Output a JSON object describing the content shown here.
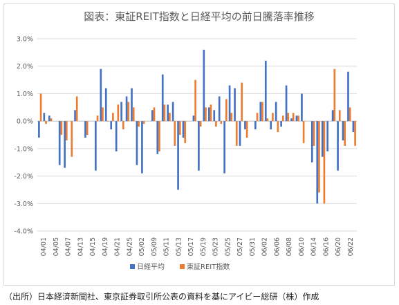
{
  "caption": "（出所）日本経済新聞社、東京証券取引所公表の資料を基にアイビー総研（株）作成",
  "chart_data": {
    "type": "bar",
    "title": "図表：東証REIT指数と日経平均の前日騰落率推移",
    "xlabel": "",
    "ylabel": "",
    "ylim": [
      -4.0,
      3.0
    ],
    "yticks": [
      "-4.0%",
      "-3.0%",
      "-2.0%",
      "-1.0%",
      "0.0%",
      "1.0%",
      "2.0%",
      "3.0%"
    ],
    "grid": true,
    "legend": "bottom",
    "categories": [
      "04/01",
      "04/02",
      "04/03",
      "04/04",
      "04/05",
      "04/06",
      "04/07",
      "04/08",
      "04/09",
      "04/10",
      "04/11",
      "04/12",
      "04/13",
      "04/14",
      "04/15",
      "04/16",
      "04/17",
      "04/18",
      "04/19",
      "04/20",
      "04/21",
      "04/22",
      "04/23",
      "04/24",
      "04/25",
      "04/26",
      "04/27",
      "04/28",
      "04/29",
      "04/30",
      "05/01",
      "05/02",
      "05/03",
      "05/04",
      "05/05",
      "05/06",
      "05/07",
      "05/08",
      "05/09",
      "05/10",
      "05/11",
      "05/12",
      "05/13",
      "05/14",
      "05/15",
      "05/16",
      "05/17",
      "05/18",
      "05/19",
      "05/20",
      "05/21",
      "05/22",
      "05/23",
      "05/24",
      "05/25",
      "05/26",
      "05/27",
      "05/28",
      "05/29",
      "05/30",
      "05/31",
      "06/01",
      "06/02",
      "06/03",
      "06/04",
      "06/05",
      "06/06",
      "06/07",
      "06/08",
      "06/09",
      "06/10",
      "06/11",
      "06/12",
      "06/13",
      "06/14",
      "06/15",
      "06/16",
      "06/17",
      "06/18",
      "06/19",
      "06/20",
      "06/21",
      "06/22"
    ],
    "category_labels": [
      "04/01",
      "04/05",
      "04/07",
      "04/13",
      "04/15",
      "04/19",
      "04/21",
      "04/25",
      "05/02",
      "05/09",
      "05/11",
      "05/13",
      "05/17",
      "05/19",
      "05/23",
      "05/25",
      "05/27",
      "05/31",
      "06/02",
      "06/06",
      "06/08",
      "06/10",
      "06/14",
      "06/16",
      "06/20",
      "06/22"
    ],
    "series": [
      {
        "name": "日経平均",
        "color": "#4472c4",
        "values": [
          -0.6,
          0.3,
          0.2,
          -1.6,
          -1.7,
          0.4,
          -0.6,
          -1.8,
          1.9,
          1.2,
          -0.3,
          -1.1,
          0.7,
          0.9,
          1.2,
          -1.6,
          -1.9,
          0.4,
          -1.2,
          1.7,
          0.6,
          0.7,
          -2.5,
          -0.6,
          0.2,
          -1.8,
          2.6,
          0.5,
          0.4,
          0.9,
          -1.9,
          1.3,
          1.2,
          -0.9,
          -0.3,
          -0.3,
          0.7,
          2.2,
          -0.3,
          0.7,
          -0.2,
          1.3,
          0.1,
          0.2,
          1.0,
          null,
          -1.5,
          -3.0,
          -1.3,
          -1.1,
          0.4,
          -1.8,
          -0.7,
          1.8,
          -0.4
        ],
        "positions": [
          0,
          1,
          2,
          4,
          5,
          7,
          9,
          11,
          12,
          13,
          14,
          15,
          16,
          17,
          18,
          19,
          20,
          22,
          23,
          24,
          25,
          26,
          27,
          28,
          30,
          31,
          32,
          33,
          34,
          35,
          36,
          37,
          38,
          39,
          40,
          42,
          43,
          44,
          45,
          46,
          47,
          48,
          49,
          50,
          51,
          null,
          53,
          54,
          55,
          56,
          57,
          58,
          59,
          60,
          61
        ]
      },
      {
        "name": "東証REIT指数",
        "color": "#ed7d31",
        "values": [
          1.0,
          -0.1,
          0.1,
          -0.5,
          -0.7,
          -1.3,
          0.9,
          -0.5,
          0.2,
          0.5,
          0.0,
          0.3,
          0.6,
          -0.3,
          0.7,
          0.5,
          -0.2,
          -0.1,
          0.5,
          -1.1,
          0.6,
          0.3,
          -0.9,
          -0.5,
          -0.8,
          1.5,
          -0.2,
          0.5,
          0.6,
          -0.2,
          -0.1,
          0.8,
          0.3,
          -0.9,
          1.4,
          -0.6,
          0.3,
          0.7,
          0.1,
          0.3,
          -0.4,
          0.2,
          0.3,
          0.3,
          0.2,
          -0.8,
          -0.9,
          -2.6,
          -3.0,
          1.9,
          0.4,
          -0.9,
          0.5,
          -0.9
        ],
        "positions": [
          0,
          1,
          2,
          4,
          5,
          6,
          7,
          9,
          11,
          12,
          13,
          14,
          15,
          16,
          17,
          18,
          19,
          20,
          22,
          23,
          24,
          25,
          26,
          27,
          28,
          30,
          31,
          32,
          33,
          34,
          35,
          36,
          37,
          38,
          39,
          40,
          42,
          43,
          44,
          45,
          46,
          47,
          48,
          49,
          50,
          51,
          53,
          54,
          55,
          57,
          58,
          59,
          60,
          61
        ]
      }
    ]
  }
}
